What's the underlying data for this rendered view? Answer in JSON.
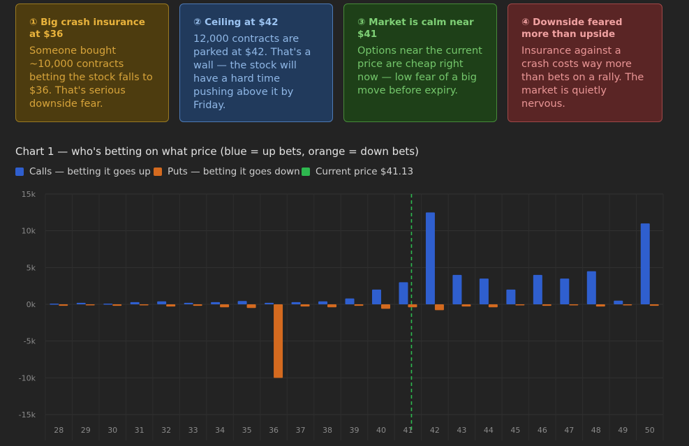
{
  "cards": [
    {
      "title": "① Big crash insurance at $36",
      "body": "Someone bought ~10,000 contracts betting the stock falls to $36. That's serious downside fear."
    },
    {
      "title": "② Ceiling at $42",
      "body": "12,000 contracts are parked at $42. That's a wall — the stock will have a hard time pushing above it by Friday."
    },
    {
      "title": "③ Market is calm near $41",
      "body": "Options near the current price are cheap right now — low fear of a big move before expiry."
    },
    {
      "title": "④ Downside feared more than upside",
      "body": "Insurance against a crash costs way more than bets on a rally. The market is quietly nervous."
    }
  ],
  "legend": {
    "calls": "Calls — betting it goes up",
    "puts": "Puts — betting it goes down",
    "current": "Current price $41.13"
  },
  "colors": {
    "calls": "#2f5fcf",
    "puts": "#d46a1f",
    "current": "#2eb84f"
  },
  "chart_data": {
    "type": "bar",
    "title": "Chart 1 — who's betting on what price (blue = up bets, orange = down bets)",
    "categories": [
      "28",
      "29",
      "30",
      "31",
      "32",
      "33",
      "34",
      "35",
      "36",
      "37",
      "38",
      "39",
      "40",
      "41",
      "42",
      "43",
      "44",
      "45",
      "46",
      "47",
      "48",
      "49",
      "50"
    ],
    "series": [
      {
        "name": "Calls",
        "values": [
          100,
          200,
          100,
          300,
          400,
          200,
          300,
          450,
          200,
          300,
          400,
          800,
          2000,
          3000,
          12500,
          4000,
          3500,
          2000,
          4000,
          3500,
          4500,
          500,
          11000
        ]
      },
      {
        "name": "Puts",
        "values": [
          -200,
          -100,
          -200,
          -100,
          -300,
          -200,
          -400,
          -500,
          -10000,
          -300,
          -400,
          -200,
          -600,
          -400,
          -800,
          -300,
          -400,
          -100,
          -200,
          -100,
          -300,
          -100,
          -200
        ]
      }
    ],
    "current_price": 41.13,
    "ylim": [
      -15000,
      15000
    ],
    "yticks": [
      15000,
      10000,
      5000,
      0,
      -5000,
      -10000,
      -15000
    ],
    "ytick_labels": [
      "15k",
      "10k",
      "5k",
      "0k",
      "-5k",
      "-10k",
      "-15k"
    ],
    "grid": true
  }
}
